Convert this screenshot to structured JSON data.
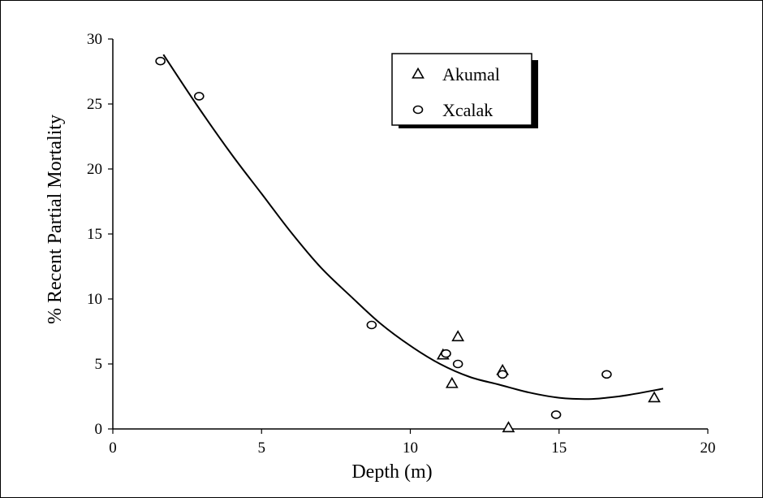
{
  "chart_data": {
    "type": "scatter",
    "title": "",
    "xlabel": "Depth (m)",
    "ylabel": "% Recent Partial Mortality",
    "xlim": [
      0,
      20
    ],
    "ylim": [
      0,
      30
    ],
    "xticks": [
      "0",
      "5",
      "10",
      "15",
      "20"
    ],
    "yticks": [
      "0",
      "5",
      "10",
      "15",
      "20",
      "25",
      "30"
    ],
    "grid": false,
    "legend_position": "top-right",
    "series": [
      {
        "name": "Akumal",
        "marker": "triangle",
        "points": [
          {
            "x": 11.1,
            "y": 5.7
          },
          {
            "x": 11.4,
            "y": 3.5
          },
          {
            "x": 11.6,
            "y": 7.1
          },
          {
            "x": 13.1,
            "y": 4.5
          },
          {
            "x": 13.3,
            "y": 0.1
          },
          {
            "x": 18.2,
            "y": 2.4
          }
        ]
      },
      {
        "name": "Xcalak",
        "marker": "circle",
        "points": [
          {
            "x": 1.6,
            "y": 28.3
          },
          {
            "x": 2.9,
            "y": 25.6
          },
          {
            "x": 8.7,
            "y": 8.0
          },
          {
            "x": 11.2,
            "y": 5.8
          },
          {
            "x": 11.6,
            "y": 5.0
          },
          {
            "x": 13.1,
            "y": 4.2
          },
          {
            "x": 14.9,
            "y": 1.1
          },
          {
            "x": 16.6,
            "y": 4.2
          }
        ]
      }
    ],
    "trendline": {
      "type": "polynomial",
      "points": [
        {
          "x": 1.7,
          "y": 28.8
        },
        {
          "x": 2.8,
          "y": 25.0
        },
        {
          "x": 4.0,
          "y": 21.1
        },
        {
          "x": 5.0,
          "y": 18.1
        },
        {
          "x": 6.0,
          "y": 15.1
        },
        {
          "x": 7.0,
          "y": 12.4
        },
        {
          "x": 8.0,
          "y": 10.2
        },
        {
          "x": 9.0,
          "y": 8.1
        },
        {
          "x": 10.0,
          "y": 6.4
        },
        {
          "x": 11.0,
          "y": 5.0
        },
        {
          "x": 12.0,
          "y": 4.0
        },
        {
          "x": 13.0,
          "y": 3.4
        },
        {
          "x": 14.0,
          "y": 2.8
        },
        {
          "x": 15.0,
          "y": 2.4
        },
        {
          "x": 16.0,
          "y": 2.3
        },
        {
          "x": 16.6,
          "y": 2.4
        },
        {
          "x": 17.3,
          "y": 2.6
        },
        {
          "x": 18.5,
          "y": 3.1
        }
      ]
    }
  }
}
